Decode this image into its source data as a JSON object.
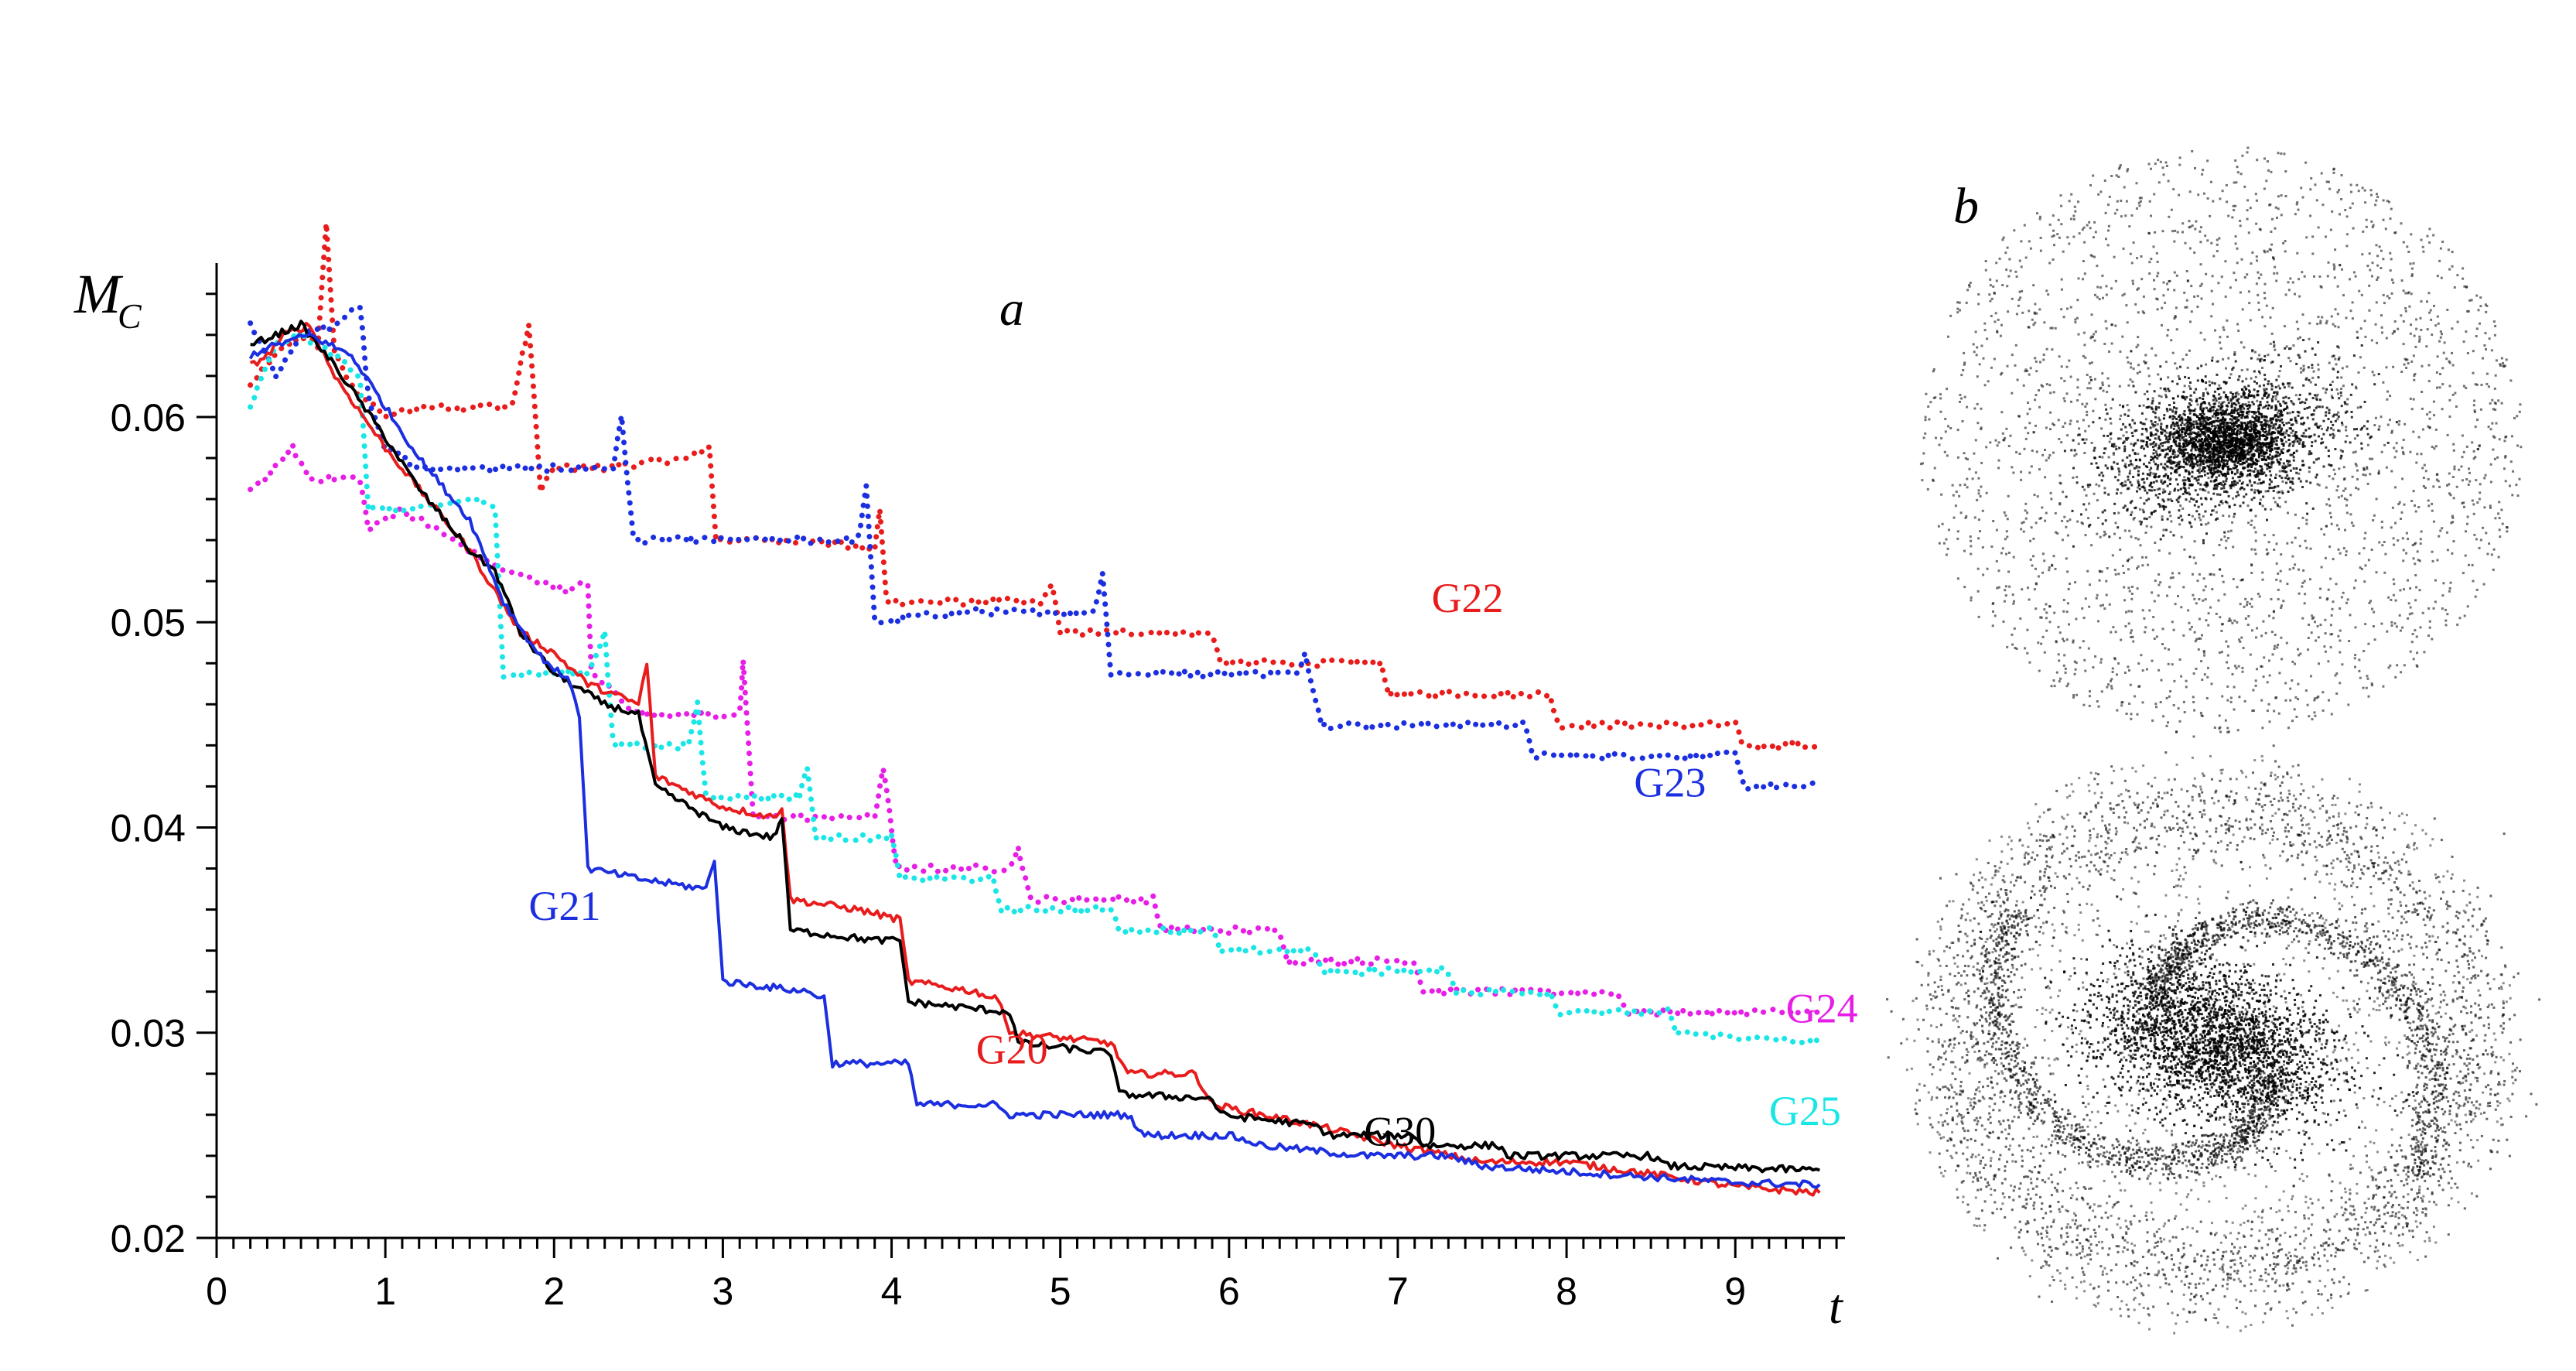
{
  "chart_data": [
    {
      "type": "line",
      "panel_label": "a",
      "ylabel": "M",
      "ylabel_sub": "C",
      "xlabel": "t",
      "xlim": [
        0,
        9.65
      ],
      "ylim": [
        0.02,
        0.0675
      ],
      "x_ticks": [
        0,
        1,
        2,
        3,
        4,
        5,
        6,
        7,
        8,
        9
      ],
      "x_tick_labels": [
        "0",
        "1",
        "2",
        "3",
        "4",
        "5",
        "6",
        "7",
        "8",
        "9"
      ],
      "y_ticks": [
        0.02,
        0.03,
        0.04,
        0.05,
        0.06
      ],
      "y_tick_labels": [
        "0.02",
        "0.03",
        "0.04",
        "0.05",
        "0.06"
      ],
      "grid": false,
      "series": [
        {
          "name": "G22",
          "color": "#e81c1c",
          "style": "dotted",
          "label_at": [
            7.2,
            0.0505
          ],
          "points": [
            [
              0.2,
              0.0615
            ],
            [
              0.35,
              0.063
            ],
            [
              0.5,
              0.064
            ],
            [
              0.6,
              0.0635
            ],
            [
              0.65,
              0.0695
            ],
            [
              0.7,
              0.063
            ],
            [
              0.8,
              0.0615
            ],
            [
              1.0,
              0.06
            ],
            [
              1.2,
              0.0605
            ],
            [
              1.5,
              0.0605
            ],
            [
              1.75,
              0.0605
            ],
            [
              1.85,
              0.0645
            ],
            [
              1.92,
              0.0565
            ],
            [
              2.0,
              0.0575
            ],
            [
              2.3,
              0.0575
            ],
            [
              2.8,
              0.058
            ],
            [
              2.92,
              0.0585
            ],
            [
              2.96,
              0.054
            ],
            [
              3.5,
              0.054
            ],
            [
              3.9,
              0.0535
            ],
            [
              3.93,
              0.0555
            ],
            [
              3.97,
              0.051
            ],
            [
              4.9,
              0.051
            ],
            [
              4.95,
              0.052
            ],
            [
              5.0,
              0.0495
            ],
            [
              5.9,
              0.0495
            ],
            [
              5.95,
              0.048
            ],
            [
              6.9,
              0.048
            ],
            [
              6.95,
              0.0465
            ],
            [
              7.9,
              0.0465
            ],
            [
              7.95,
              0.045
            ],
            [
              9.0,
              0.045
            ],
            [
              9.05,
              0.044
            ],
            [
              9.5,
              0.044
            ]
          ]
        },
        {
          "name": "G23",
          "color": "#1c2fe0",
          "style": "dotted",
          "label_at": [
            8.4,
            0.0415
          ],
          "points": [
            [
              0.2,
              0.0645
            ],
            [
              0.35,
              0.062
            ],
            [
              0.5,
              0.064
            ],
            [
              0.7,
              0.0645
            ],
            [
              0.85,
              0.0655
            ],
            [
              0.9,
              0.061
            ],
            [
              1.0,
              0.0585
            ],
            [
              1.2,
              0.0575
            ],
            [
              1.6,
              0.0575
            ],
            [
              2.0,
              0.0575
            ],
            [
              2.35,
              0.0575
            ],
            [
              2.4,
              0.06
            ],
            [
              2.47,
              0.054
            ],
            [
              3.0,
              0.054
            ],
            [
              3.8,
              0.054
            ],
            [
              3.85,
              0.0565
            ],
            [
              3.9,
              0.05
            ],
            [
              4.4,
              0.0505
            ],
            [
              5.2,
              0.0505
            ],
            [
              5.25,
              0.0525
            ],
            [
              5.3,
              0.0475
            ],
            [
              6.4,
              0.0475
            ],
            [
              6.45,
              0.0485
            ],
            [
              6.55,
              0.045
            ],
            [
              7.75,
              0.045
            ],
            [
              7.8,
              0.0435
            ],
            [
              9.0,
              0.0435
            ],
            [
              9.05,
              0.042
            ],
            [
              9.5,
              0.042
            ]
          ]
        },
        {
          "name": "G24",
          "color": "#e61ee6",
          "style": "dotted",
          "label_at": [
            9.3,
            0.0305
          ],
          "points": [
            [
              0.2,
              0.0565
            ],
            [
              0.35,
              0.0575
            ],
            [
              0.45,
              0.0585
            ],
            [
              0.55,
              0.057
            ],
            [
              0.85,
              0.057
            ],
            [
              0.9,
              0.0545
            ],
            [
              1.1,
              0.0555
            ],
            [
              1.3,
              0.0545
            ],
            [
              1.5,
              0.0535
            ],
            [
              1.7,
              0.0525
            ],
            [
              1.9,
              0.052
            ],
            [
              2.1,
              0.0515
            ],
            [
              2.2,
              0.052
            ],
            [
              2.22,
              0.0475
            ],
            [
              2.3,
              0.047
            ],
            [
              2.5,
              0.0455
            ],
            [
              2.9,
              0.0455
            ],
            [
              3.1,
              0.0455
            ],
            [
              3.12,
              0.048
            ],
            [
              3.18,
              0.0405
            ],
            [
              3.9,
              0.0405
            ],
            [
              3.95,
              0.043
            ],
            [
              4.03,
              0.038
            ],
            [
              4.7,
              0.038
            ],
            [
              4.75,
              0.039
            ],
            [
              4.82,
              0.0365
            ],
            [
              5.55,
              0.0365
            ],
            [
              5.6,
              0.035
            ],
            [
              6.3,
              0.035
            ],
            [
              6.35,
              0.0335
            ],
            [
              7.1,
              0.0335
            ],
            [
              7.15,
              0.032
            ],
            [
              8.3,
              0.032
            ],
            [
              8.35,
              0.031
            ],
            [
              9.5,
              0.031
            ]
          ]
        },
        {
          "name": "G25",
          "color": "#1ae6e6",
          "style": "dotted",
          "label_at": [
            9.2,
            0.0255
          ],
          "points": [
            [
              0.2,
              0.0605
            ],
            [
              0.35,
              0.0635
            ],
            [
              0.5,
              0.064
            ],
            [
              0.7,
              0.063
            ],
            [
              0.85,
              0.062
            ],
            [
              0.9,
              0.0555
            ],
            [
              1.2,
              0.0555
            ],
            [
              1.5,
              0.056
            ],
            [
              1.65,
              0.0555
            ],
            [
              1.7,
              0.0475
            ],
            [
              2.2,
              0.0475
            ],
            [
              2.3,
              0.0495
            ],
            [
              2.35,
              0.044
            ],
            [
              2.8,
              0.044
            ],
            [
              2.85,
              0.046
            ],
            [
              2.9,
              0.0415
            ],
            [
              3.45,
              0.0415
            ],
            [
              3.5,
              0.043
            ],
            [
              3.55,
              0.0395
            ],
            [
              4.0,
              0.0395
            ],
            [
              4.05,
              0.0375
            ],
            [
              4.6,
              0.0375
            ],
            [
              4.65,
              0.036
            ],
            [
              5.3,
              0.036
            ],
            [
              5.35,
              0.035
            ],
            [
              5.9,
              0.035
            ],
            [
              5.95,
              0.034
            ],
            [
              6.5,
              0.034
            ],
            [
              6.55,
              0.033
            ],
            [
              7.3,
              0.033
            ],
            [
              7.35,
              0.032
            ],
            [
              7.9,
              0.032
            ],
            [
              7.95,
              0.031
            ],
            [
              8.6,
              0.031
            ],
            [
              8.65,
              0.03
            ],
            [
              9.5,
              0.0295
            ]
          ]
        },
        {
          "name": "G20",
          "color": "#e81c1c",
          "style": "solid",
          "label_at": [
            4.5,
            0.0285
          ],
          "points": [
            [
              0.2,
              0.0625
            ],
            [
              0.3,
              0.063
            ],
            [
              0.4,
              0.064
            ],
            [
              0.55,
              0.0645
            ],
            [
              0.7,
              0.062
            ],
            [
              1.0,
              0.0585
            ],
            [
              1.2,
              0.0565
            ],
            [
              1.5,
              0.0535
            ],
            [
              1.65,
              0.0515
            ],
            [
              1.8,
              0.0495
            ],
            [
              2.0,
              0.0485
            ],
            [
              2.2,
              0.047
            ],
            [
              2.5,
              0.046
            ],
            [
              2.55,
              0.048
            ],
            [
              2.6,
              0.0425
            ],
            [
              3.0,
              0.041
            ],
            [
              3.3,
              0.0405
            ],
            [
              3.35,
              0.041
            ],
            [
              3.4,
              0.0365
            ],
            [
              3.8,
              0.036
            ],
            [
              4.05,
              0.0355
            ],
            [
              4.1,
              0.0325
            ],
            [
              4.5,
              0.032
            ],
            [
              4.65,
              0.0315
            ],
            [
              4.7,
              0.03
            ],
            [
              5.3,
              0.0295
            ],
            [
              5.4,
              0.028
            ],
            [
              5.8,
              0.028
            ],
            [
              5.9,
              0.0265
            ],
            [
              6.5,
              0.0255
            ],
            [
              7.0,
              0.0245
            ],
            [
              7.5,
              0.0237
            ],
            [
              8.0,
              0.0237
            ],
            [
              8.6,
              0.023
            ],
            [
              9.0,
              0.0225
            ],
            [
              9.5,
              0.0222
            ]
          ]
        },
        {
          "name": "G30",
          "color": "#000000",
          "style": "solid",
          "label_at": [
            6.8,
            0.0245
          ],
          "points": [
            [
              0.2,
              0.0635
            ],
            [
              0.35,
              0.064
            ],
            [
              0.5,
              0.0645
            ],
            [
              0.7,
              0.0625
            ],
            [
              1.0,
              0.059
            ],
            [
              1.2,
              0.0565
            ],
            [
              1.5,
              0.0535
            ],
            [
              1.65,
              0.0525
            ],
            [
              1.8,
              0.0495
            ],
            [
              2.0,
              0.0475
            ],
            [
              2.3,
              0.046
            ],
            [
              2.5,
              0.0455
            ],
            [
              2.6,
              0.042
            ],
            [
              3.0,
              0.04
            ],
            [
              3.3,
              0.0395
            ],
            [
              3.35,
              0.0405
            ],
            [
              3.4,
              0.035
            ],
            [
              3.9,
              0.0345
            ],
            [
              4.05,
              0.0345
            ],
            [
              4.1,
              0.0315
            ],
            [
              4.7,
              0.031
            ],
            [
              4.75,
              0.0295
            ],
            [
              5.3,
              0.029
            ],
            [
              5.35,
              0.027
            ],
            [
              5.9,
              0.0268
            ],
            [
              5.95,
              0.026
            ],
            [
              6.5,
              0.0255
            ],
            [
              6.6,
              0.025
            ],
            [
              7.1,
              0.025
            ],
            [
              7.15,
              0.0245
            ],
            [
              7.6,
              0.0245
            ],
            [
              7.65,
              0.024
            ],
            [
              8.5,
              0.024
            ],
            [
              8.6,
              0.0235
            ],
            [
              9.5,
              0.0233
            ]
          ]
        },
        {
          "name": "G21",
          "color": "#1c2fe0",
          "style": "solid",
          "label_at": [
            1.85,
            0.0355
          ],
          "points": [
            [
              0.2,
              0.063
            ],
            [
              0.35,
              0.0635
            ],
            [
              0.55,
              0.064
            ],
            [
              0.8,
              0.063
            ],
            [
              1.0,
              0.0605
            ],
            [
              1.2,
              0.058
            ],
            [
              1.5,
              0.055
            ],
            [
              1.7,
              0.051
            ],
            [
              1.9,
              0.0485
            ],
            [
              2.1,
              0.047
            ],
            [
              2.15,
              0.0455
            ],
            [
              2.2,
              0.038
            ],
            [
              2.5,
              0.0375
            ],
            [
              2.9,
              0.037
            ],
            [
              2.95,
              0.0385
            ],
            [
              3.0,
              0.0325
            ],
            [
              3.5,
              0.032
            ],
            [
              3.6,
              0.0317
            ],
            [
              3.65,
              0.0285
            ],
            [
              4.1,
              0.0285
            ],
            [
              4.15,
              0.0265
            ],
            [
              4.6,
              0.0265
            ],
            [
              4.7,
              0.026
            ],
            [
              5.4,
              0.026
            ],
            [
              5.5,
              0.025
            ],
            [
              6.0,
              0.025
            ],
            [
              6.2,
              0.0245
            ],
            [
              6.8,
              0.024
            ],
            [
              7.3,
              0.024
            ],
            [
              7.5,
              0.0235
            ],
            [
              9.0,
              0.0227
            ],
            [
              9.5,
              0.0226
            ]
          ]
        }
      ]
    },
    {
      "type": "image",
      "panel_label": "b",
      "content": "two particle-snapshot images of a galaxy disk: upper shows a central bar with scattered disk; lower shows a bar with two spiral arms and an outer ring"
    }
  ]
}
